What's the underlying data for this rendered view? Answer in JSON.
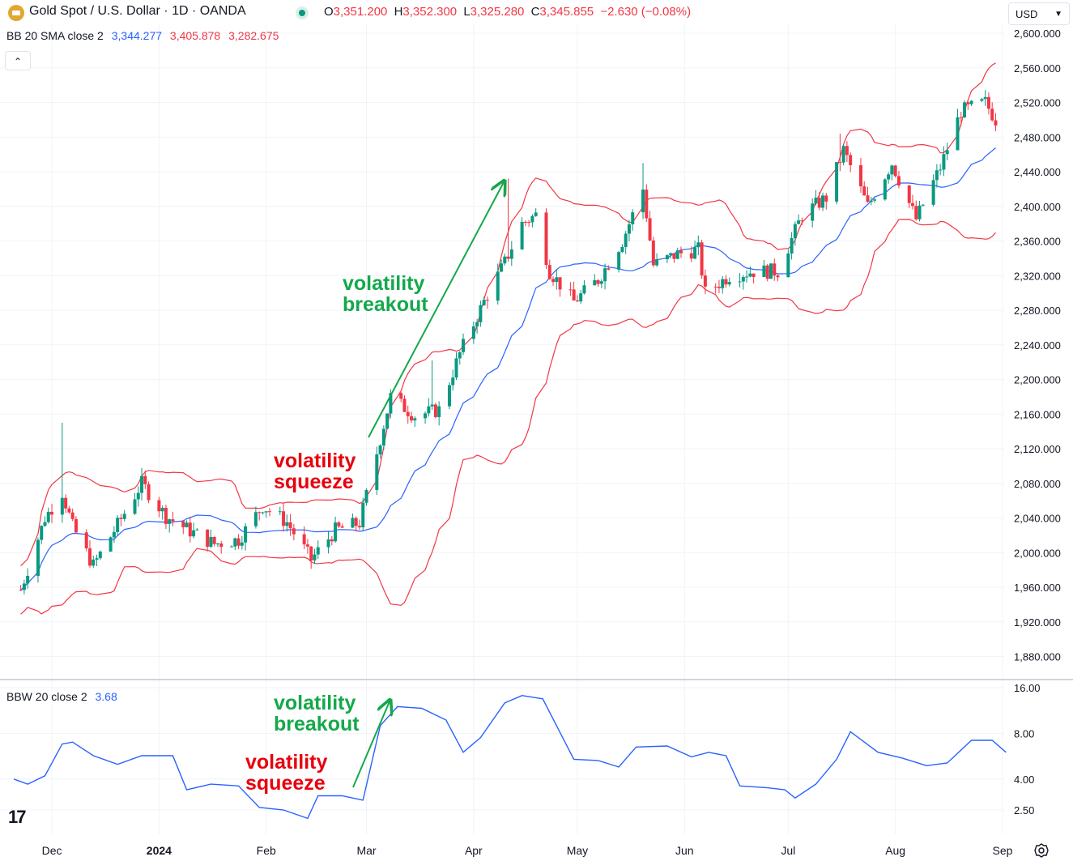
{
  "header": {
    "symbol_title": "Gold Spot / U.S. Dollar · 1D · OANDA",
    "ohlc": [
      {
        "key": "O",
        "value": "3,351.200"
      },
      {
        "key": "H",
        "value": "3,352.300"
      },
      {
        "key": "L",
        "value": "3,325.280"
      },
      {
        "key": "C",
        "value": "3,345.855"
      }
    ],
    "change": "−2.630 (−0.08%)",
    "currency": "USD",
    "collapse_icon": "chevron-up-icon",
    "symbol_icon": "gold-bar-icon",
    "status_icon": "market-open-dot-icon"
  },
  "indicators": {
    "bb": {
      "label": "BB 20 SMA close 2",
      "basis": "3,344.277",
      "upper": "3,405.878",
      "lower": "3,282.675",
      "basis_color": "#2962ff",
      "band_color": "#f23645"
    },
    "bbw": {
      "label": "BBW 20 close 2",
      "value": "3.68",
      "color": "#2962ff"
    }
  },
  "annotations": {
    "top_breakout": "volatility\nbreakout",
    "top_squeeze": "volatility\nsqueeze",
    "bottom_breakout": "volatility\nbreakout",
    "bottom_squeeze": "volatility\nsqueeze",
    "breakout_color": "#14a84b",
    "squeeze_color": "#e8000d"
  },
  "colors": {
    "up": "#089981",
    "down": "#f23645",
    "grid": "#f0f3fa",
    "axis_text": "#131722"
  },
  "footer": {
    "logo": "17",
    "settings_icon": "gear-icon"
  },
  "chart_data": [
    {
      "type": "candlestick",
      "title": "Gold Spot / U.S. Dollar · 1D · OANDA",
      "y_axis_ticks": [
        "2,600.000",
        "2,560.000",
        "2,520.000",
        "2,480.000",
        "2,440.000",
        "2,400.000",
        "2,360.000",
        "2,320.000",
        "2,280.000",
        "2,240.000",
        "2,200.000",
        "2,160.000",
        "2,120.000",
        "2,080.000",
        "2,040.000",
        "2,000.000",
        "1,960.000",
        "1,920.000",
        "1,880.000"
      ],
      "x_axis_ticks": [
        "Dec",
        "2024",
        "Feb",
        "Mar",
        "Apr",
        "May",
        "Jun",
        "Jul",
        "Aug",
        "Sep"
      ],
      "ylim": [
        1860,
        2620
      ],
      "series_close": [
        {
          "d": "2023-11-22",
          "c": 1957
        },
        {
          "d": "2023-11-29",
          "c": 2040
        },
        {
          "d": "2023-12-04",
          "c": 2070
        },
        {
          "d": "2023-12-07",
          "c": 2030
        },
        {
          "d": "2023-12-13",
          "c": 1985
        },
        {
          "d": "2023-12-20",
          "c": 2032
        },
        {
          "d": "2023-12-27",
          "c": 2080
        },
        {
          "d": "2024-01-03",
          "c": 2042
        },
        {
          "d": "2024-01-10",
          "c": 2025
        },
        {
          "d": "2024-01-17",
          "c": 2010
        },
        {
          "d": "2024-01-24",
          "c": 2015
        },
        {
          "d": "2024-01-31",
          "c": 2054
        },
        {
          "d": "2024-02-07",
          "c": 2035
        },
        {
          "d": "2024-02-14",
          "c": 1992
        },
        {
          "d": "2024-02-21",
          "c": 2026
        },
        {
          "d": "2024-02-28",
          "c": 2034
        },
        {
          "d": "2024-03-04",
          "c": 2115
        },
        {
          "d": "2024-03-08",
          "c": 2180
        },
        {
          "d": "2024-03-15",
          "c": 2158
        },
        {
          "d": "2024-03-22",
          "c": 2165
        },
        {
          "d": "2024-03-28",
          "c": 2230
        },
        {
          "d": "2024-04-04",
          "c": 2290
        },
        {
          "d": "2024-04-10",
          "c": 2335
        },
        {
          "d": "2024-04-15",
          "c": 2380
        },
        {
          "d": "2024-04-19",
          "c": 2390
        },
        {
          "d": "2024-04-23",
          "c": 2325
        },
        {
          "d": "2024-04-30",
          "c": 2290
        },
        {
          "d": "2024-05-07",
          "c": 2315
        },
        {
          "d": "2024-05-14",
          "c": 2360
        },
        {
          "d": "2024-05-20",
          "c": 2420
        },
        {
          "d": "2024-05-23",
          "c": 2332
        },
        {
          "d": "2024-05-30",
          "c": 2345
        },
        {
          "d": "2024-06-05",
          "c": 2350
        },
        {
          "d": "2024-06-07",
          "c": 2300
        },
        {
          "d": "2024-06-14",
          "c": 2320
        },
        {
          "d": "2024-06-21",
          "c": 2325
        },
        {
          "d": "2024-06-28",
          "c": 2325
        },
        {
          "d": "2024-07-05",
          "c": 2390
        },
        {
          "d": "2024-07-12",
          "c": 2410
        },
        {
          "d": "2024-07-17",
          "c": 2465
        },
        {
          "d": "2024-07-24",
          "c": 2400
        },
        {
          "d": "2024-07-31",
          "c": 2450
        },
        {
          "d": "2024-08-07",
          "c": 2385
        },
        {
          "d": "2024-08-14",
          "c": 2445
        },
        {
          "d": "2024-08-20",
          "c": 2510
        },
        {
          "d": "2024-08-27",
          "c": 2520
        },
        {
          "d": "2024-08-30",
          "c": 2500
        }
      ]
    },
    {
      "type": "line",
      "title": "BBW 20 close 2",
      "y_axis_ticks": [
        "16.00",
        "8.00",
        "4.00",
        "2.50"
      ],
      "y_scale": "log",
      "ylim": [
        2.0,
        17.5
      ],
      "series": [
        {
          "name": "BBW 20 close 2",
          "values": [
            {
              "d": "2023-11-20",
              "v": 4.0
            },
            {
              "d": "2023-11-24",
              "v": 3.7
            },
            {
              "d": "2023-11-29",
              "v": 4.2
            },
            {
              "d": "2023-12-04",
              "v": 6.8
            },
            {
              "d": "2023-12-07",
              "v": 7.0
            },
            {
              "d": "2023-12-13",
              "v": 5.7
            },
            {
              "d": "2023-12-20",
              "v": 5.0
            },
            {
              "d": "2023-12-27",
              "v": 5.7
            },
            {
              "d": "2024-01-05",
              "v": 5.7
            },
            {
              "d": "2024-01-09",
              "v": 3.4
            },
            {
              "d": "2024-01-16",
              "v": 3.7
            },
            {
              "d": "2024-01-24",
              "v": 3.6
            },
            {
              "d": "2024-01-30",
              "v": 2.6
            },
            {
              "d": "2024-02-06",
              "v": 2.5
            },
            {
              "d": "2024-02-13",
              "v": 2.2
            },
            {
              "d": "2024-02-16",
              "v": 3.1
            },
            {
              "d": "2024-02-23",
              "v": 3.1
            },
            {
              "d": "2024-02-29",
              "v": 2.9
            },
            {
              "d": "2024-03-05",
              "v": 9.0
            },
            {
              "d": "2024-03-10",
              "v": 12.0
            },
            {
              "d": "2024-03-17",
              "v": 11.7
            },
            {
              "d": "2024-03-24",
              "v": 9.8
            },
            {
              "d": "2024-03-29",
              "v": 6.0
            },
            {
              "d": "2024-04-03",
              "v": 7.5
            },
            {
              "d": "2024-04-10",
              "v": 12.7
            },
            {
              "d": "2024-04-15",
              "v": 14.2
            },
            {
              "d": "2024-04-21",
              "v": 13.5
            },
            {
              "d": "2024-04-30",
              "v": 5.4
            },
            {
              "d": "2024-05-07",
              "v": 5.3
            },
            {
              "d": "2024-05-13",
              "v": 4.8
            },
            {
              "d": "2024-05-18",
              "v": 6.5
            },
            {
              "d": "2024-05-27",
              "v": 6.6
            },
            {
              "d": "2024-06-03",
              "v": 5.6
            },
            {
              "d": "2024-06-08",
              "v": 6.0
            },
            {
              "d": "2024-06-13",
              "v": 5.7
            },
            {
              "d": "2024-06-17",
              "v": 3.6
            },
            {
              "d": "2024-06-25",
              "v": 3.5
            },
            {
              "d": "2024-06-30",
              "v": 3.4
            },
            {
              "d": "2024-07-03",
              "v": 3.0
            },
            {
              "d": "2024-07-09",
              "v": 3.7
            },
            {
              "d": "2024-07-15",
              "v": 5.4
            },
            {
              "d": "2024-07-19",
              "v": 8.2
            },
            {
              "d": "2024-07-27",
              "v": 6.0
            },
            {
              "d": "2024-08-03",
              "v": 5.5
            },
            {
              "d": "2024-08-10",
              "v": 4.9
            },
            {
              "d": "2024-08-16",
              "v": 5.1
            },
            {
              "d": "2024-08-23",
              "v": 7.2
            },
            {
              "d": "2024-08-29",
              "v": 7.2
            },
            {
              "d": "2024-09-02",
              "v": 6.0
            }
          ]
        }
      ]
    }
  ]
}
